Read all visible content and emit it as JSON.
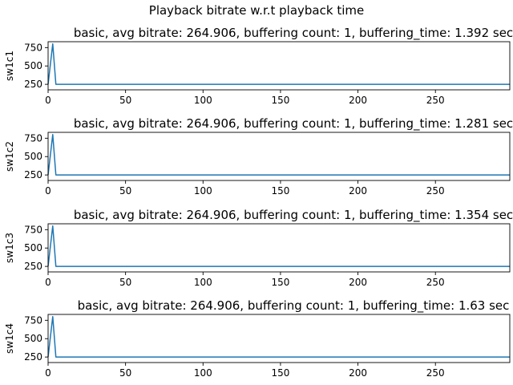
{
  "figure": {
    "suptitle": "Playback bitrate w.r.t playback time"
  },
  "style": {
    "line_color": "#1f77b4",
    "axis_color": "#000000",
    "background": "#ffffff"
  },
  "chart_data": [
    {
      "type": "line",
      "title": "basic, avg bitrate: 264.906, buffering count: 1, buffering_time: 1.392 sec",
      "ylabel": "sw1c1",
      "xlabel": "",
      "xlim": [
        0,
        298
      ],
      "ylim": [
        175,
        830
      ],
      "xticks": [
        0,
        50,
        100,
        150,
        200,
        250
      ],
      "yticks": [
        250,
        500,
        750
      ],
      "grid": false,
      "series": [
        {
          "x": [
            0,
            3,
            5,
            298
          ],
          "y": [
            250,
            800,
            250,
            250
          ]
        }
      ]
    },
    {
      "type": "line",
      "title": "basic, avg bitrate: 264.906, buffering count: 1, buffering_time: 1.281 sec",
      "ylabel": "sw1c2",
      "xlabel": "",
      "xlim": [
        0,
        298
      ],
      "ylim": [
        175,
        830
      ],
      "xticks": [
        0,
        50,
        100,
        150,
        200,
        250
      ],
      "yticks": [
        250,
        500,
        750
      ],
      "grid": false,
      "series": [
        {
          "x": [
            0,
            3,
            5,
            298
          ],
          "y": [
            250,
            800,
            250,
            250
          ]
        }
      ]
    },
    {
      "type": "line",
      "title": "basic, avg bitrate: 264.906, buffering count: 1, buffering_time: 1.354 sec",
      "ylabel": "sw1c3",
      "xlabel": "",
      "xlim": [
        0,
        298
      ],
      "ylim": [
        175,
        830
      ],
      "xticks": [
        0,
        50,
        100,
        150,
        200,
        250
      ],
      "yticks": [
        250,
        500,
        750
      ],
      "grid": false,
      "series": [
        {
          "x": [
            0,
            3,
            5,
            298
          ],
          "y": [
            250,
            800,
            250,
            250
          ]
        }
      ]
    },
    {
      "type": "line",
      "title": "basic, avg bitrate: 264.906, buffering count: 1, buffering_time: 1.63 sec",
      "ylabel": "sw1c4",
      "xlabel": "",
      "xlim": [
        0,
        298
      ],
      "ylim": [
        175,
        830
      ],
      "xticks": [
        0,
        50,
        100,
        150,
        200,
        250
      ],
      "yticks": [
        250,
        500,
        750
      ],
      "grid": false,
      "series": [
        {
          "x": [
            0,
            3,
            5,
            298
          ],
          "y": [
            250,
            800,
            250,
            250
          ]
        }
      ]
    }
  ]
}
